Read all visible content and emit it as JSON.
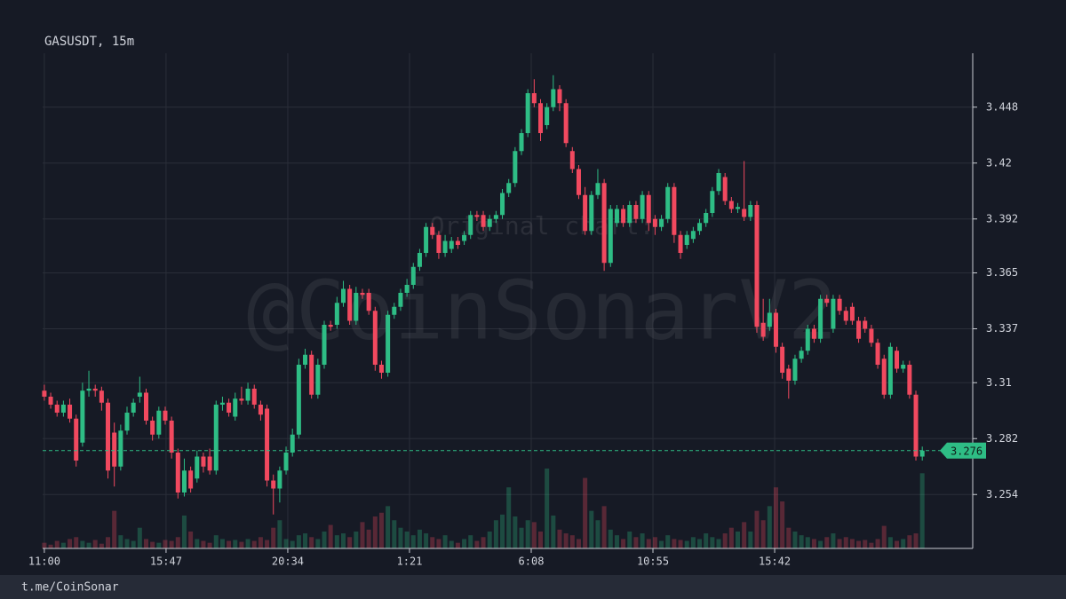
{
  "chart_data": {
    "type": "candlestick",
    "title": "GASUSDT, 15m",
    "watermark": "@CoinSonarV2",
    "watermark_note": "Original chart:",
    "footer": "t.me/CoinSonar",
    "up_color": "#2ebd85",
    "down_color": "#f1495f",
    "grid": true,
    "last_price": 3.276,
    "xlim": [
      -4,
      2189
    ],
    "ylim": [
      3.227,
      3.475
    ],
    "xticks": [
      {
        "value": 0,
        "label": "11:00"
      },
      {
        "value": 287,
        "label": "15:47"
      },
      {
        "value": 574,
        "label": "20:34"
      },
      {
        "value": 861,
        "label": "1:21"
      },
      {
        "value": 1148,
        "label": "6:08"
      },
      {
        "value": 1435,
        "label": "10:55"
      },
      {
        "value": 1722,
        "label": "15:42"
      }
    ],
    "yticks": [
      3.254,
      3.282,
      3.31,
      3.337,
      3.365,
      3.392,
      3.42,
      3.448
    ],
    "x": [
      0,
      15,
      30,
      45,
      60,
      75,
      90,
      105,
      120,
      135,
      150,
      165,
      180,
      195,
      210,
      225,
      240,
      255,
      270,
      285,
      300,
      315,
      330,
      345,
      360,
      375,
      390,
      405,
      420,
      435,
      450,
      465,
      480,
      495,
      510,
      525,
      540,
      555,
      570,
      585,
      600,
      615,
      630,
      645,
      660,
      675,
      690,
      705,
      720,
      735,
      750,
      765,
      780,
      795,
      810,
      825,
      840,
      855,
      870,
      885,
      900,
      915,
      930,
      945,
      960,
      975,
      990,
      1005,
      1020,
      1035,
      1050,
      1065,
      1080,
      1095,
      1110,
      1125,
      1140,
      1155,
      1170,
      1185,
      1200,
      1215,
      1230,
      1245,
      1260,
      1275,
      1290,
      1305,
      1320,
      1335,
      1350,
      1365,
      1380,
      1395,
      1410,
      1425,
      1440,
      1455,
      1470,
      1485,
      1500,
      1515,
      1530,
      1545,
      1560,
      1575,
      1590,
      1605,
      1620,
      1635,
      1650,
      1665,
      1680,
      1695,
      1710,
      1725,
      1740,
      1755,
      1770,
      1785,
      1800,
      1815,
      1830,
      1845,
      1860,
      1875,
      1890,
      1905,
      1920,
      1935,
      1950,
      1965,
      1980,
      1995,
      2010,
      2025,
      2040,
      2055,
      2070
    ],
    "open": [
      3.306,
      3.303,
      3.299,
      3.295,
      3.299,
      3.292,
      3.28,
      3.306,
      3.307,
      3.306,
      3.3,
      3.285,
      3.268,
      3.286,
      3.295,
      3.303,
      3.305,
      3.291,
      3.284,
      3.296,
      3.291,
      3.275,
      3.255,
      3.266,
      3.262,
      3.273,
      3.273,
      3.266,
      3.299,
      3.3,
      3.293,
      3.302,
      3.301,
      3.307,
      3.299,
      3.297,
      3.261,
      3.257,
      3.266,
      3.275,
      3.284,
      3.319,
      3.324,
      3.304,
      3.319,
      3.339,
      3.339,
      3.35,
      3.357,
      3.341,
      3.355,
      3.355,
      3.346,
      3.319,
      3.315,
      3.344,
      3.348,
      3.355,
      3.359,
      3.368,
      3.375,
      3.388,
      3.384,
      3.375,
      3.377,
      3.381,
      3.381,
      3.384,
      3.394,
      3.394,
      3.388,
      3.392,
      3.394,
      3.405,
      3.41,
      3.426,
      3.435,
      3.455,
      3.45,
      3.439,
      3.448,
      3.457,
      3.45,
      3.426,
      3.417,
      3.404,
      3.386,
      3.404,
      3.41,
      3.37,
      3.39,
      3.397,
      3.39,
      3.399,
      3.392,
      3.404,
      3.392,
      3.388,
      3.392,
      3.408,
      3.384,
      3.379,
      3.382,
      3.386,
      3.39,
      3.395,
      3.406,
      3.413,
      3.401,
      3.397,
      3.397,
      3.393,
      3.399,
      3.34,
      3.338,
      3.345,
      3.328,
      3.317,
      3.311,
      3.322,
      3.326,
      3.337,
      3.332,
      3.352,
      3.337,
      3.352,
      3.346,
      3.348,
      3.341,
      3.341,
      3.337,
      3.33,
      3.322,
      3.304,
      3.326,
      3.317,
      3.319,
      3.304,
      3.273
    ],
    "high": [
      3.309,
      3.305,
      3.301,
      3.301,
      3.302,
      3.294,
      3.31,
      3.316,
      3.309,
      3.308,
      3.302,
      3.29,
      3.289,
      3.298,
      3.302,
      3.313,
      3.307,
      3.293,
      3.298,
      3.298,
      3.293,
      3.277,
      3.272,
      3.268,
      3.276,
      3.275,
      3.277,
      3.301,
      3.303,
      3.302,
      3.305,
      3.308,
      3.31,
      3.309,
      3.301,
      3.299,
      3.264,
      3.268,
      3.278,
      3.287,
      3.322,
      3.327,
      3.326,
      3.322,
      3.341,
      3.341,
      3.353,
      3.361,
      3.359,
      3.358,
      3.357,
      3.357,
      3.348,
      3.321,
      3.346,
      3.35,
      3.357,
      3.362,
      3.37,
      3.377,
      3.39,
      3.39,
      3.386,
      3.384,
      3.383,
      3.383,
      3.386,
      3.396,
      3.396,
      3.396,
      3.394,
      3.396,
      3.407,
      3.412,
      3.428,
      3.437,
      3.457,
      3.462,
      3.452,
      3.45,
      3.464,
      3.459,
      3.452,
      3.428,
      3.419,
      3.408,
      3.406,
      3.417,
      3.412,
      3.399,
      3.399,
      3.399,
      3.401,
      3.401,
      3.406,
      3.406,
      3.394,
      3.394,
      3.41,
      3.41,
      3.386,
      3.386,
      3.388,
      3.392,
      3.397,
      3.408,
      3.417,
      3.415,
      3.403,
      3.4,
      3.421,
      3.401,
      3.401,
      3.352,
      3.352,
      3.347,
      3.33,
      3.319,
      3.324,
      3.328,
      3.339,
      3.339,
      3.354,
      3.354,
      3.354,
      3.354,
      3.348,
      3.35,
      3.343,
      3.343,
      3.339,
      3.332,
      3.324,
      3.33,
      3.328,
      3.321,
      3.321,
      3.306,
      3.278
    ],
    "low": [
      3.301,
      3.297,
      3.293,
      3.293,
      3.29,
      3.268,
      3.278,
      3.303,
      3.303,
      3.296,
      3.262,
      3.258,
      3.266,
      3.284,
      3.293,
      3.3,
      3.289,
      3.281,
      3.282,
      3.289,
      3.272,
      3.252,
      3.253,
      3.255,
      3.26,
      3.265,
      3.264,
      3.264,
      3.296,
      3.293,
      3.291,
      3.299,
      3.299,
      3.297,
      3.291,
      3.258,
      3.244,
      3.25,
      3.264,
      3.273,
      3.282,
      3.317,
      3.302,
      3.302,
      3.317,
      3.336,
      3.337,
      3.348,
      3.339,
      3.339,
      3.352,
      3.344,
      3.316,
      3.312,
      3.313,
      3.342,
      3.346,
      3.353,
      3.357,
      3.366,
      3.373,
      3.382,
      3.372,
      3.373,
      3.375,
      3.377,
      3.379,
      3.382,
      3.391,
      3.386,
      3.386,
      3.39,
      3.392,
      3.403,
      3.408,
      3.424,
      3.433,
      3.448,
      3.431,
      3.437,
      3.446,
      3.446,
      3.428,
      3.415,
      3.402,
      3.384,
      3.384,
      3.402,
      3.366,
      3.368,
      3.388,
      3.388,
      3.388,
      3.39,
      3.39,
      3.386,
      3.384,
      3.386,
      3.39,
      3.38,
      3.372,
      3.377,
      3.38,
      3.384,
      3.388,
      3.393,
      3.404,
      3.399,
      3.395,
      3.395,
      3.391,
      3.391,
      3.335,
      3.331,
      3.336,
      3.325,
      3.312,
      3.302,
      3.309,
      3.32,
      3.324,
      3.33,
      3.33,
      3.348,
      3.335,
      3.344,
      3.339,
      3.339,
      3.33,
      3.335,
      3.328,
      3.317,
      3.302,
      3.302,
      3.315,
      3.315,
      3.302,
      3.271,
      3.271
    ],
    "close": [
      3.303,
      3.299,
      3.295,
      3.299,
      3.292,
      3.271,
      3.306,
      3.307,
      3.306,
      3.3,
      3.266,
      3.268,
      3.286,
      3.295,
      3.3,
      3.305,
      3.291,
      3.284,
      3.296,
      3.291,
      3.275,
      3.255,
      3.266,
      3.257,
      3.273,
      3.268,
      3.266,
      3.299,
      3.3,
      3.295,
      3.302,
      3.301,
      3.307,
      3.299,
      3.294,
      3.261,
      3.257,
      3.266,
      3.275,
      3.284,
      3.319,
      3.324,
      3.304,
      3.319,
      3.339,
      3.338,
      3.35,
      3.357,
      3.341,
      3.355,
      3.354,
      3.346,
      3.319,
      3.315,
      3.344,
      3.348,
      3.355,
      3.359,
      3.368,
      3.375,
      3.388,
      3.384,
      3.375,
      3.381,
      3.381,
      3.379,
      3.384,
      3.394,
      3.393,
      3.388,
      3.392,
      3.394,
      3.405,
      3.41,
      3.426,
      3.435,
      3.455,
      3.45,
      3.435,
      3.448,
      3.457,
      3.45,
      3.43,
      3.417,
      3.404,
      3.386,
      3.404,
      3.41,
      3.37,
      3.397,
      3.397,
      3.39,
      3.399,
      3.392,
      3.404,
      3.39,
      3.388,
      3.392,
      3.408,
      3.384,
      3.375,
      3.384,
      3.386,
      3.39,
      3.395,
      3.406,
      3.415,
      3.401,
      3.397,
      3.398,
      3.393,
      3.399,
      3.338,
      3.333,
      3.345,
      3.328,
      3.315,
      3.311,
      3.322,
      3.326,
      3.337,
      3.332,
      3.352,
      3.35,
      3.352,
      3.346,
      3.341,
      3.341,
      3.332,
      3.337,
      3.33,
      3.319,
      3.304,
      3.328,
      3.317,
      3.319,
      3.304,
      3.273,
      3.276
    ],
    "volume": [
      6,
      4,
      8,
      6,
      10,
      12,
      8,
      6,
      9,
      5,
      12,
      40,
      14,
      10,
      8,
      22,
      10,
      7,
      6,
      9,
      8,
      12,
      35,
      18,
      10,
      8,
      6,
      14,
      10,
      8,
      9,
      7,
      10,
      8,
      12,
      9,
      22,
      30,
      10,
      8,
      14,
      16,
      12,
      10,
      18,
      25,
      14,
      16,
      12,
      18,
      28,
      20,
      34,
      38,
      45,
      30,
      22,
      18,
      14,
      20,
      16,
      12,
      10,
      14,
      8,
      6,
      10,
      14,
      8,
      12,
      18,
      30,
      36,
      65,
      34,
      22,
      30,
      28,
      18,
      85,
      35,
      20,
      16,
      14,
      10,
      75,
      40,
      30,
      45,
      20,
      14,
      10,
      18,
      12,
      16,
      10,
      12,
      8,
      14,
      10,
      9,
      8,
      12,
      10,
      16,
      12,
      10,
      16,
      22,
      18,
      28,
      18,
      40,
      30,
      45,
      65,
      50,
      22,
      18,
      14,
      12,
      10,
      8,
      12,
      16,
      10,
      12,
      10,
      8,
      9,
      6,
      10,
      24,
      12,
      8,
      10,
      14,
      16,
      80
    ]
  }
}
